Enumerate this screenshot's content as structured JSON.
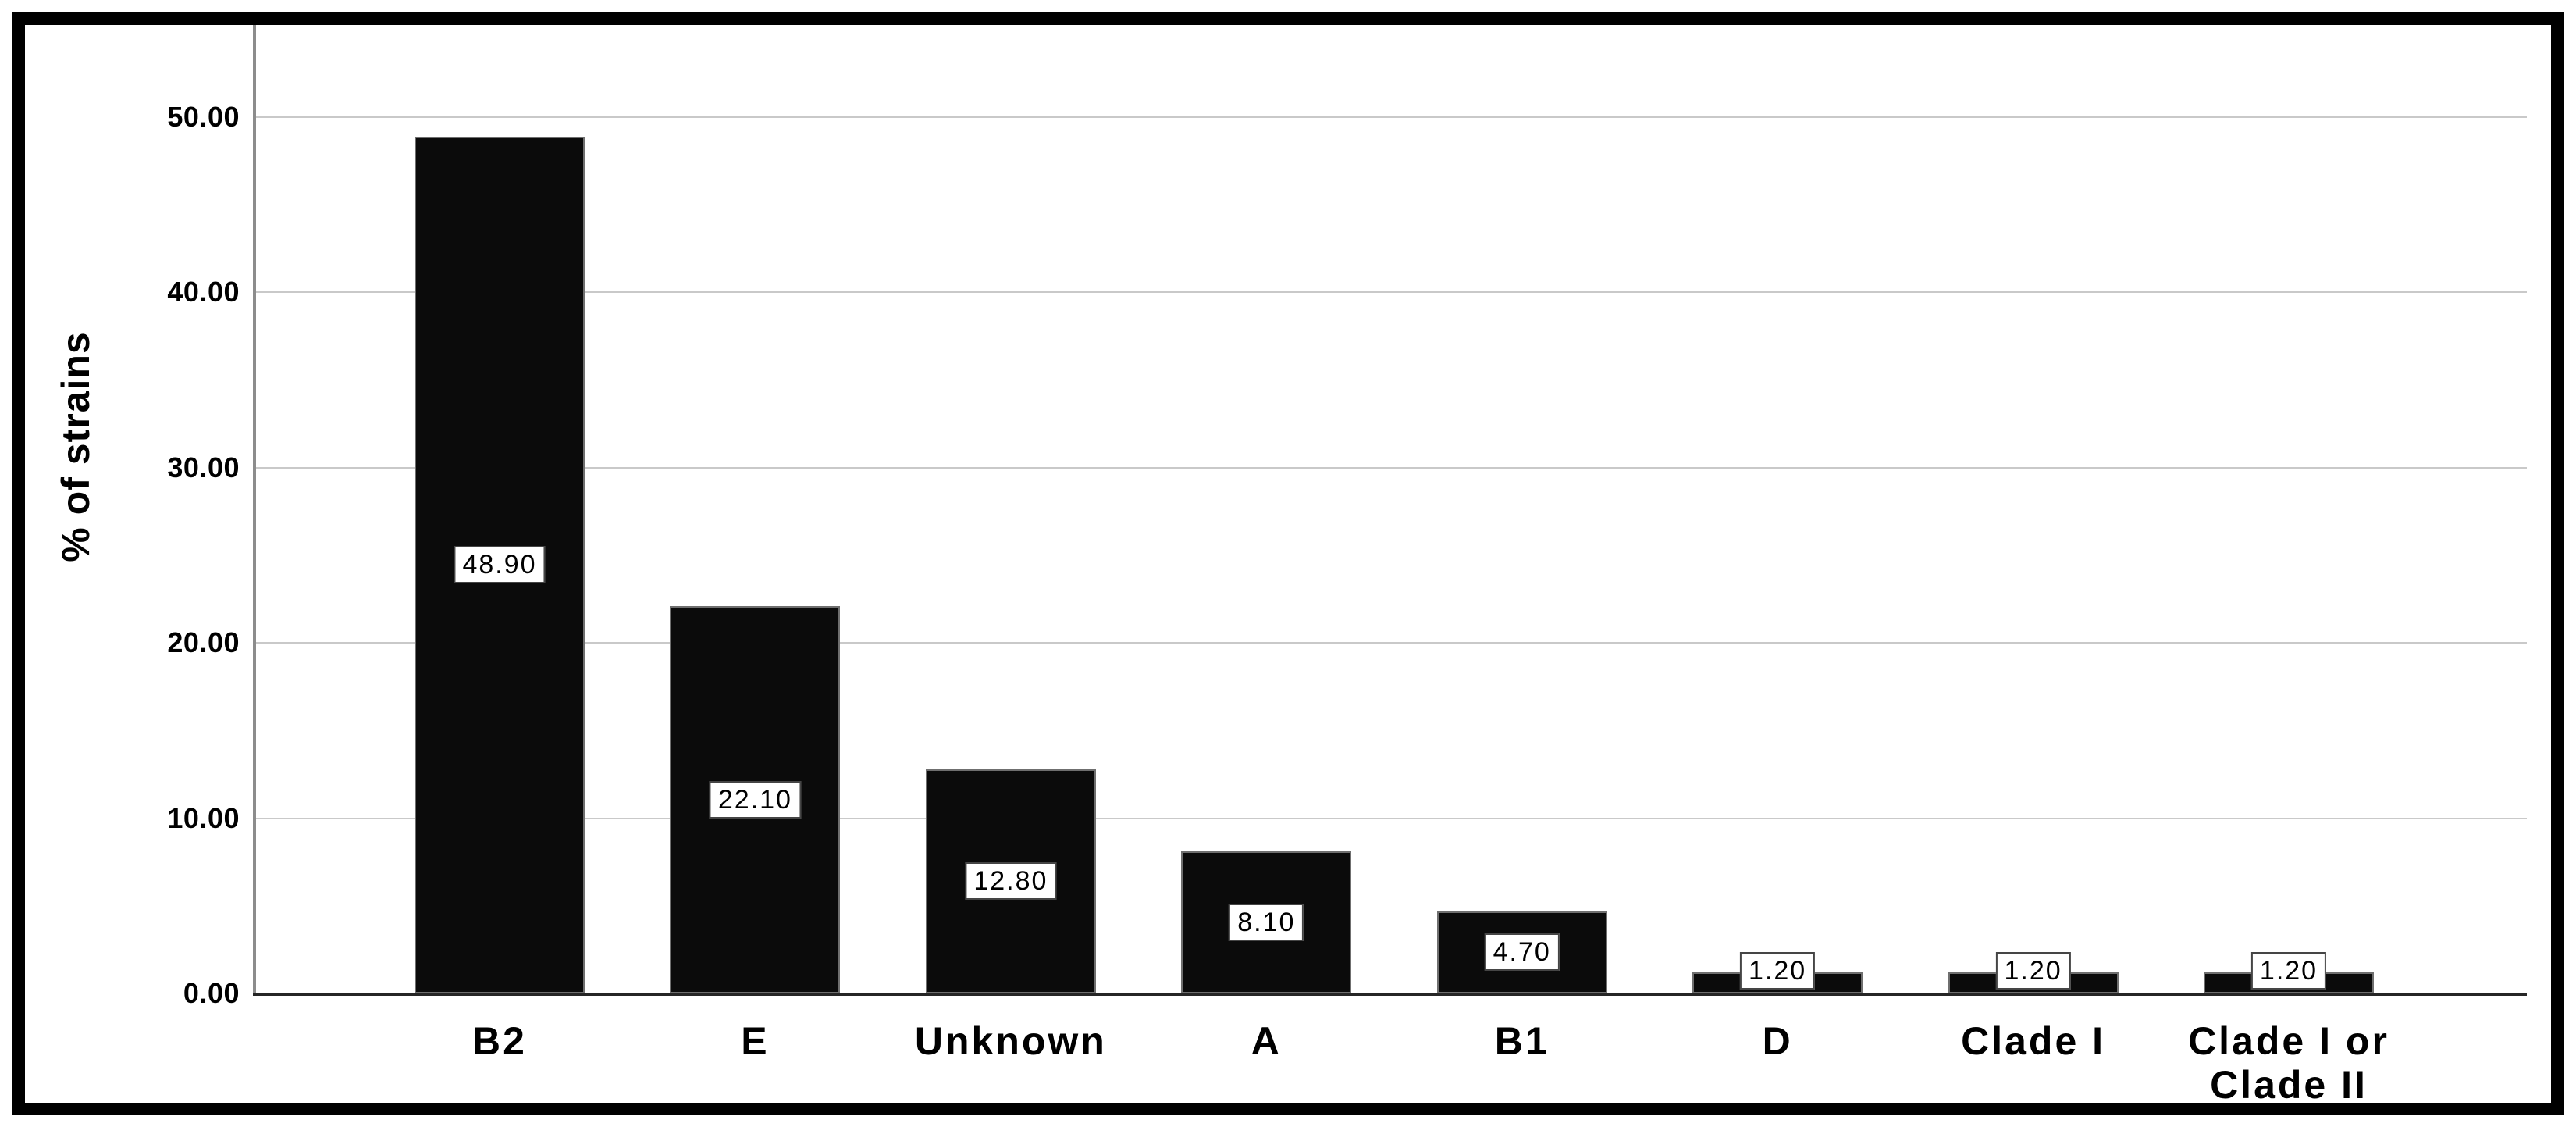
{
  "chart_data": {
    "type": "bar",
    "title": "",
    "categories": [
      "B2",
      "E",
      "Unknown",
      "A",
      "B1",
      "D",
      "Clade I",
      "Clade I or\nClade II"
    ],
    "values": [
      48.9,
      22.1,
      12.8,
      8.1,
      4.7,
      1.2,
      1.2,
      1.2
    ],
    "bar_value_labels": [
      "48.90",
      "22.10",
      "12.80",
      "8.10",
      "4.70",
      "1.20",
      "1.20",
      "1.20"
    ],
    "xlabel": "",
    "ylabel": "% of strains",
    "ytick_labels": [
      "0.00",
      "10.00",
      "20.00",
      "30.00",
      "40.00",
      "50.00"
    ],
    "ytick_values": [
      0,
      10,
      20,
      30,
      40,
      50
    ],
    "ylim": [
      0,
      55.2
    ],
    "grid": true,
    "legend_position": "none",
    "colors": {
      "bar_fill": "#0b0b0b",
      "bar_border": "#6f6f6f",
      "gridline": "#c9c9c9",
      "y_axis_line": "#8c8c8c",
      "baseline": "#262626",
      "value_box_bg": "#ffffff",
      "value_box_border": "#454545",
      "frame": "#000000",
      "background": "#ffffff",
      "text": "#000000"
    }
  }
}
